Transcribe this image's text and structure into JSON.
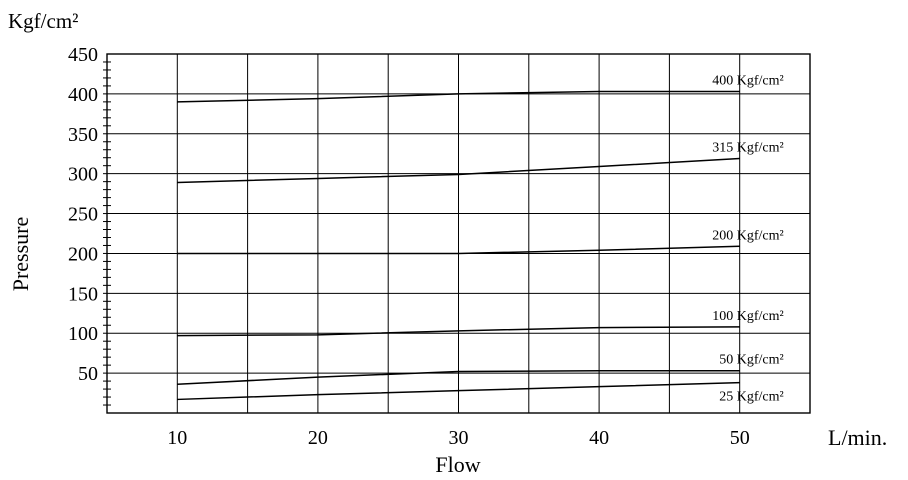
{
  "chart_data": {
    "type": "line",
    "unit_label": "Kgf/cm²",
    "xunit_label": "L/min.",
    "xlabel": "Flow",
    "ylabel": "Pressure",
    "xlim": [
      5,
      55
    ],
    "ylim": [
      0,
      450
    ],
    "x_ticks": [
      10,
      20,
      30,
      40,
      50
    ],
    "y_ticks": [
      50,
      100,
      150,
      200,
      250,
      300,
      350,
      400,
      450
    ],
    "grid": true,
    "series": [
      {
        "name": "400 Kgf/cm²",
        "x": [
          10,
          20,
          30,
          40,
          50
        ],
        "y": [
          390,
          394,
          400,
          403,
          403
        ]
      },
      {
        "name": "315 Kgf/cm²",
        "x": [
          10,
          20,
          30,
          40,
          50
        ],
        "y": [
          289,
          294,
          299,
          309,
          319
        ]
      },
      {
        "name": "200 Kgf/cm²",
        "x": [
          10,
          20,
          30,
          40,
          50
        ],
        "y": [
          200,
          200,
          200,
          204,
          209
        ]
      },
      {
        "name": "100 Kgf/cm²",
        "x": [
          10,
          20,
          30,
          40,
          50
        ],
        "y": [
          97,
          98,
          103,
          107,
          108
        ]
      },
      {
        "name": "50 Kgf/cm²",
        "x": [
          10,
          20,
          30,
          40,
          50
        ],
        "y": [
          36,
          45,
          52,
          53,
          53
        ]
      },
      {
        "name": "25 Kgf/cm²",
        "x": [
          10,
          20,
          30,
          40,
          50
        ],
        "y": [
          17,
          23,
          28,
          33,
          38
        ]
      }
    ]
  }
}
